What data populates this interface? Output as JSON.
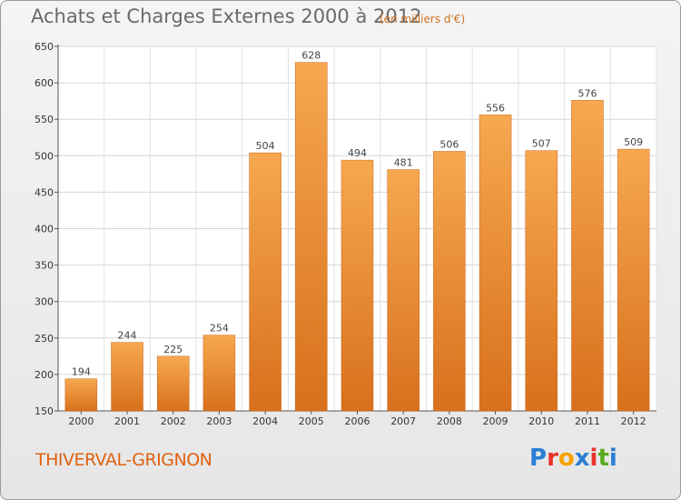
{
  "title": "Achats et Charges Externes 2000 à 2012",
  "subtitle": "(en milliers d'€)",
  "location": "THIVERVAL-GRIGNON",
  "brand": {
    "letters": [
      "P",
      "r",
      "o",
      "x",
      "i",
      "t",
      "i"
    ],
    "colors": [
      "#2a7fd4",
      "#e8322c",
      "#f6a200",
      "#2a7fd4",
      "#e8322c",
      "#5aaa20",
      "#2a7fd4"
    ]
  },
  "chart_data": {
    "type": "bar",
    "title": "Achats et Charges Externes 2000 à 2012",
    "subtitle": "(en milliers d'€)",
    "categories": [
      "2000",
      "2001",
      "2002",
      "2003",
      "2004",
      "2005",
      "2006",
      "2007",
      "2008",
      "2009",
      "2010",
      "2011",
      "2012"
    ],
    "values": [
      194,
      244,
      225,
      254,
      504,
      628,
      494,
      481,
      506,
      556,
      507,
      576,
      509
    ],
    "ylim": [
      150,
      650
    ],
    "yticks": [
      150,
      200,
      250,
      300,
      350,
      400,
      450,
      500,
      550,
      600,
      650
    ],
    "grid": true,
    "bar_color": "#f0922e",
    "legend": "none"
  }
}
